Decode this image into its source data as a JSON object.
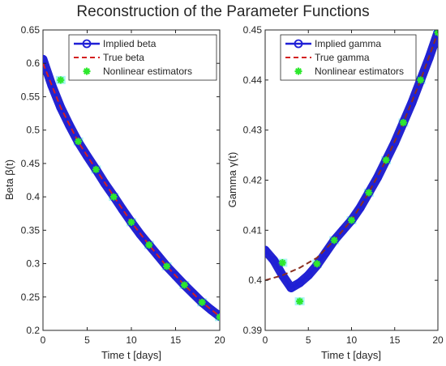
{
  "figure_title": "Reconstruction of the Parameter Functions",
  "colors": {
    "implied": "#1f1fd6",
    "implied_fat": "#2424d0",
    "true": "#d42020",
    "true_right": "#8a2f20",
    "estimator": "#2ee82e",
    "estimator_halo": "#aaf5f5"
  },
  "chart_data": [
    {
      "type": "line",
      "xlabel": "Time t [days]",
      "ylabel": "Beta β(t)",
      "xlim": [
        0,
        20
      ],
      "ylim": [
        0.2,
        0.65
      ],
      "xticks": [
        0,
        5,
        10,
        15,
        20
      ],
      "yticks": [
        0.2,
        0.25,
        0.3,
        0.35,
        0.4,
        0.45,
        0.5,
        0.55,
        0.6,
        0.65
      ],
      "grid": false,
      "legend_position": "top-right",
      "series": [
        {
          "name": "Implied beta",
          "style": "thick-line-circle-marker",
          "x": [
            0,
            1,
            2,
            3,
            4,
            5,
            6,
            7,
            8,
            9,
            10,
            11,
            12,
            13,
            14,
            15,
            16,
            17,
            18,
            19,
            20
          ],
          "y": [
            0.606,
            0.567,
            0.534,
            0.507,
            0.482,
            0.461,
            0.441,
            0.42,
            0.401,
            0.381,
            0.362,
            0.344,
            0.328,
            0.312,
            0.296,
            0.282,
            0.268,
            0.255,
            0.242,
            0.231,
            0.221
          ]
        },
        {
          "name": "True beta",
          "style": "dashed",
          "x": [
            0,
            2,
            4,
            6,
            8,
            10,
            12,
            14,
            16,
            18,
            20
          ],
          "y": [
            0.6,
            0.534,
            0.482,
            0.441,
            0.401,
            0.362,
            0.328,
            0.296,
            0.268,
            0.242,
            0.221
          ]
        },
        {
          "name": "Nonlinear estimators",
          "style": "star-markers",
          "x": [
            2,
            4,
            6,
            8,
            10,
            12,
            14,
            16,
            18,
            20
          ],
          "y": [
            0.575,
            0.483,
            0.441,
            0.4,
            0.362,
            0.328,
            0.296,
            0.268,
            0.242,
            0.22
          ]
        }
      ]
    },
    {
      "type": "line",
      "xlabel": "Time t [days]",
      "ylabel": "Gamma γ(t)",
      "xlim": [
        0,
        20
      ],
      "ylim": [
        0.39,
        0.45
      ],
      "xticks": [
        0,
        5,
        10,
        15,
        20
      ],
      "yticks": [
        0.39,
        0.4,
        0.41,
        0.42,
        0.43,
        0.44,
        0.45
      ],
      "grid": false,
      "legend_position": "top-left",
      "series": [
        {
          "name": "Implied gamma",
          "style": "thick-line-circle-marker",
          "x": [
            0,
            1,
            2,
            3,
            4,
            5,
            6,
            7,
            8,
            9,
            10,
            11,
            12,
            13,
            14,
            15,
            16,
            17,
            18,
            19,
            20
          ],
          "y": [
            0.406,
            0.404,
            0.401,
            0.3985,
            0.3995,
            0.401,
            0.403,
            0.4055,
            0.408,
            0.41,
            0.412,
            0.4145,
            0.4175,
            0.4205,
            0.424,
            0.4275,
            0.4315,
            0.4355,
            0.44,
            0.4445,
            0.4495
          ]
        },
        {
          "name": "True gamma",
          "style": "dashed",
          "x": [
            0,
            2,
            4,
            6,
            8,
            10,
            12,
            14,
            16,
            18,
            20
          ],
          "y": [
            0.4,
            0.401,
            0.4025,
            0.4045,
            0.408,
            0.412,
            0.4175,
            0.424,
            0.4315,
            0.44,
            0.4495
          ]
        },
        {
          "name": "Nonlinear estimators",
          "style": "star-markers",
          "x": [
            2,
            4,
            6,
            8,
            10,
            12,
            14,
            16,
            18,
            20
          ],
          "y": [
            0.4035,
            0.3958,
            0.4033,
            0.408,
            0.412,
            0.4175,
            0.424,
            0.4315,
            0.44,
            0.4495
          ]
        }
      ]
    }
  ]
}
